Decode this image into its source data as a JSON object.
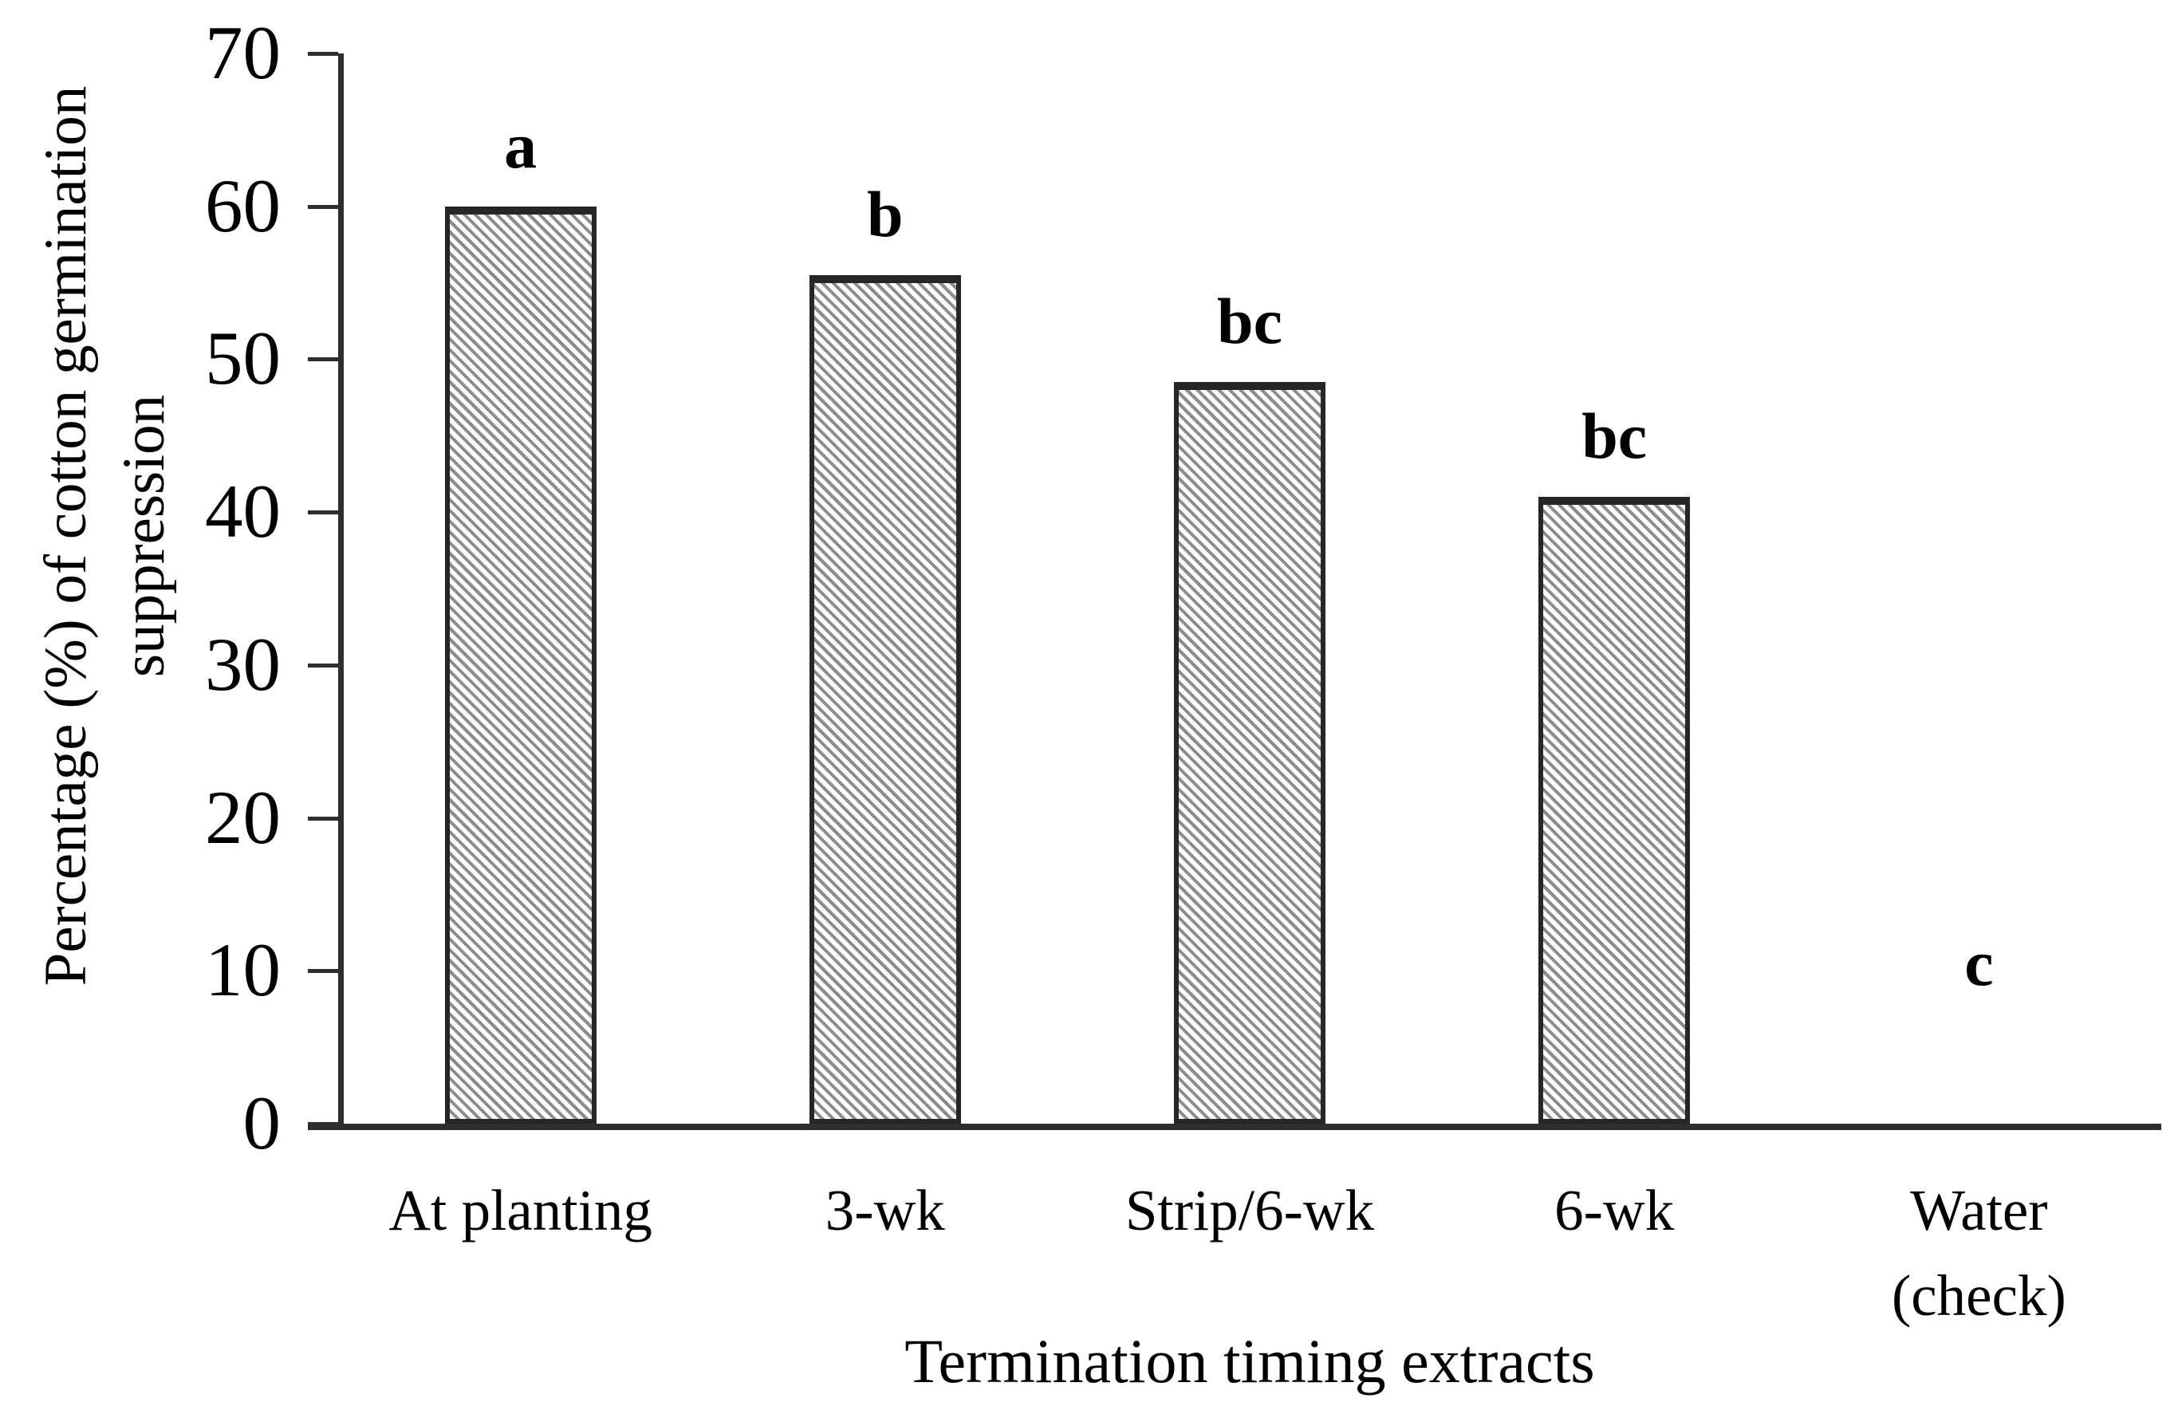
{
  "figure": {
    "background": "#ffffff",
    "text_color": "#000000",
    "axis_color": "#2e2e2e",
    "bar_border_color": "#262626",
    "bar_hatch_line_color": "#8c8c8c",
    "bar_hatch_bg_color": "#ffffff"
  },
  "chart_data": {
    "type": "bar",
    "title": "",
    "xlabel": "Termination timing extracts",
    "ylabel_lines": [
      "Percentage (%) of cotton germination",
      "suppression"
    ],
    "categories": [
      "At planting",
      "3-wk",
      "Strip/6-wk",
      "6-wk",
      "Water\n(check)"
    ],
    "values": [
      60,
      55.5,
      48.5,
      41,
      0
    ],
    "bar_labels": [
      "a",
      "b",
      "bc",
      "bc",
      "c"
    ],
    "yticks": [
      0,
      10,
      20,
      30,
      40,
      50,
      60,
      70
    ],
    "ylim": [
      0,
      70
    ],
    "grid": "off",
    "legend": "none",
    "bar_hatch": "light-downward-diagonal"
  }
}
